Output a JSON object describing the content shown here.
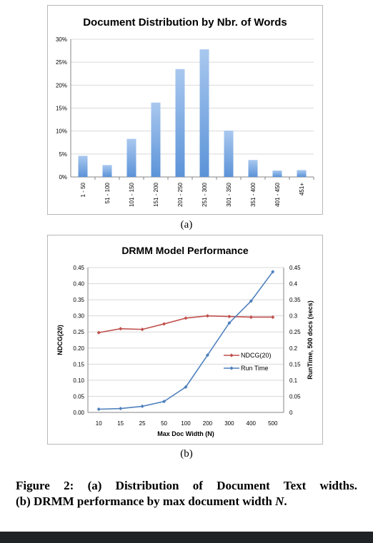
{
  "chart_data": [
    {
      "type": "bar",
      "title": "Document Distribution by Nbr. of Words",
      "categories": [
        "1 - 50",
        "51 - 100",
        "101 - 150",
        "151 - 200",
        "201 - 250",
        "251 - 300",
        "301 - 350",
        "351 - 400",
        "401 - 450",
        "451+"
      ],
      "values": [
        4.6,
        2.6,
        8.3,
        16.2,
        23.5,
        27.8,
        10.1,
        3.7,
        1.4,
        1.5
      ],
      "ylim": [
        0,
        30
      ],
      "yticks": [
        "0%",
        "5%",
        "10%",
        "15%",
        "20%",
        "25%",
        "30%"
      ],
      "grid": true,
      "bar_color": "#5b93d8"
    },
    {
      "type": "line",
      "title": "DRMM Model Performance",
      "categories": [
        "10",
        "15",
        "25",
        "50",
        "100",
        "200",
        "300",
        "400",
        "500"
      ],
      "xlabel": "Max Doc Width (N)",
      "ylabel": "NDCG(20)",
      "y2label": "RunTime, 500 docs (secs)",
      "ylim": [
        0,
        0.45
      ],
      "y2lim": [
        0,
        0.45
      ],
      "yticks": [
        "0.00",
        "0.05",
        "0.10",
        "0.15",
        "0.20",
        "0.25",
        "0.30",
        "0.35",
        "0.40",
        "0.45"
      ],
      "y2ticks": [
        "0",
        "0.05",
        "0.1",
        "0.15",
        "0.2",
        "0.25",
        "0.3",
        "0.35",
        "0.4",
        "0.45"
      ],
      "grid": true,
      "legend_position": "right",
      "series": [
        {
          "name": "NDCG(20)",
          "axis": "left",
          "color": "#c0504d",
          "values": [
            0.248,
            0.26,
            0.258,
            0.275,
            0.293,
            0.3,
            0.298,
            0.296,
            0.296
          ]
        },
        {
          "name": "Run Time",
          "axis": "right",
          "color": "#4f81bd",
          "values": [
            0.01,
            0.012,
            0.019,
            0.034,
            0.079,
            0.178,
            0.278,
            0.346,
            0.437
          ]
        }
      ]
    }
  ],
  "labels": {
    "panel_a": "(a)",
    "panel_b": "(b)"
  },
  "caption": {
    "line1": "Figure 2: (a) Distribution of Document Text widths.",
    "line2_prefix": "(b) DRMM performance by max document width ",
    "line2_var": "N",
    "line2_suffix": "."
  },
  "colors": {
    "bottom_bar": "#1f2326",
    "gridline": "#d9d9d9"
  }
}
